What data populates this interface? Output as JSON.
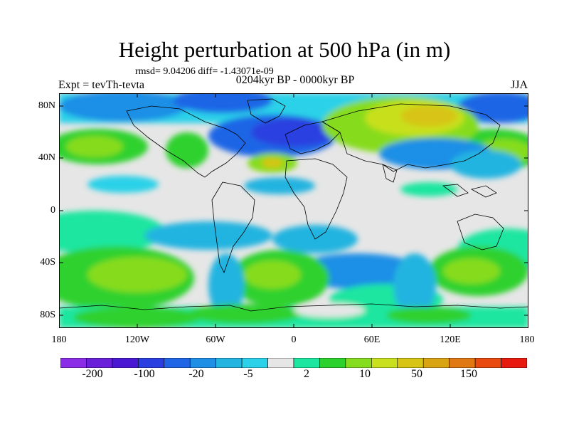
{
  "title": "Height perturbation at 500 hPa (in m)",
  "stats_line": "rmsd= 9.04206 diff= -1.43071e-09",
  "experiment": "Expt = tevTh-tevta",
  "period": "0204kyr BP - 0000kyr BP",
  "season": "JJA",
  "map": {
    "projection": "cylindrical-equidistant",
    "lon_range": [
      -180,
      180
    ],
    "lat_range": [
      -90,
      90
    ],
    "lat_tick_labels": [
      "80N",
      "40N",
      "0",
      "40S",
      "80S"
    ],
    "lon_tick_labels": [
      "180",
      "120W",
      "60W",
      "0",
      "60E",
      "120E",
      "180"
    ],
    "field": "500 hPa geopotential height difference",
    "field_units": "m",
    "pattern_notes": "Negative (blue) over North Atlantic/North America, Arctic and 40S-80S bands near 60W and 150E; positive (green-yellow) over Eurasia, North Pacific, and southern mid-latitudes"
  },
  "colorbar": {
    "colors": [
      "#8b2ce6",
      "#6a1fd8",
      "#4a18d2",
      "#2a3fe0",
      "#1f66e6",
      "#1f8fe6",
      "#24b4e0",
      "#2ad1e8",
      "#e6e6e6",
      "#1ce6a0",
      "#2dd12d",
      "#86dc1e",
      "#c8e01e",
      "#d7c414",
      "#d9a414",
      "#e07814",
      "#e84a10",
      "#e81a10"
    ],
    "labels": [
      "-200",
      "-100",
      "-20",
      "-5",
      "2",
      "10",
      "50",
      "150"
    ],
    "label_boundary_index": [
      1,
      3,
      5,
      7,
      9,
      11,
      13,
      15
    ]
  }
}
